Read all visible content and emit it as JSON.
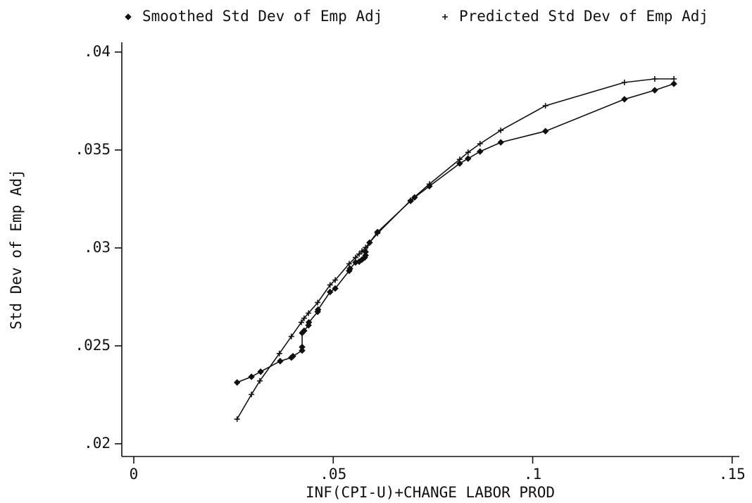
{
  "chart_data": {
    "type": "line",
    "x_label": "INF(CPI-U)+CHANGE LABOR PROD",
    "y_label": "Std Dev of Emp Adj",
    "xlim": [
      -0.003,
      0.1518
    ],
    "ylim": [
      0.01935,
      0.0405
    ],
    "xticks": [
      0,
      {
        "value": 0.05,
        "label": ".05"
      },
      {
        "value": 0.1,
        "label": ".1"
      },
      {
        "value": 0.15,
        "label": ".15"
      }
    ],
    "yticks": [
      {
        "value": 0.02,
        "label": ".02"
      },
      {
        "value": 0.025,
        "label": ".025"
      },
      {
        "value": 0.03,
        "label": ".03"
      },
      {
        "value": 0.035,
        "label": ".035"
      },
      {
        "value": 0.04,
        "label": ".04"
      }
    ],
    "series": [
      {
        "name": "Smoothed Std Dev of Emp Adj",
        "marker": "diamond",
        "color": "#111111",
        "x": [
          0.0259,
          0.0295,
          0.0318,
          0.0367,
          0.0395,
          0.0399,
          0.0422,
          0.0422,
          0.0422,
          0.0427,
          0.0438,
          0.0439,
          0.0461,
          0.0462,
          0.0492,
          0.0505,
          0.054,
          0.0542,
          0.0556,
          0.0565,
          0.0572,
          0.0579,
          0.0581,
          0.0581,
          0.0591,
          0.0611,
          0.0694,
          0.0704,
          0.0741,
          0.0817,
          0.0838,
          0.0868,
          0.092,
          0.1032,
          0.123,
          0.1306,
          0.1354
        ],
        "values": [
          0.02313,
          0.02342,
          0.02368,
          0.02422,
          0.0244,
          0.02447,
          0.02476,
          0.02494,
          0.02566,
          0.02577,
          0.02605,
          0.0262,
          0.02674,
          0.02685,
          0.02775,
          0.02793,
          0.02883,
          0.02894,
          0.02926,
          0.0293,
          0.0294,
          0.02951,
          0.02962,
          0.0298,
          0.03027,
          0.03081,
          0.0324,
          0.03258,
          0.03315,
          0.03431,
          0.03456,
          0.03492,
          0.03539,
          0.03596,
          0.03759,
          0.03805,
          0.03838
        ]
      },
      {
        "name": "Predicted Std Dev of Emp Adj",
        "marker": "plus",
        "color": "#111111",
        "x": [
          0.0259,
          0.0295,
          0.0316,
          0.0365,
          0.0395,
          0.042,
          0.0427,
          0.0438,
          0.0461,
          0.0492,
          0.0505,
          0.054,
          0.0556,
          0.0565,
          0.0572,
          0.0581,
          0.0591,
          0.0611,
          0.0694,
          0.0741,
          0.0817,
          0.0838,
          0.0868,
          0.092,
          0.1032,
          0.123,
          0.1306,
          0.1354
        ],
        "values": [
          0.02126,
          0.02252,
          0.02321,
          0.02461,
          0.02548,
          0.0262,
          0.02641,
          0.02667,
          0.02721,
          0.02811,
          0.02836,
          0.02919,
          0.02951,
          0.02969,
          0.02984,
          0.03002,
          0.03027,
          0.03074,
          0.03243,
          0.03326,
          0.03452,
          0.03488,
          0.03532,
          0.036,
          0.03726,
          0.03845,
          0.03863,
          0.03863
        ]
      }
    ]
  }
}
